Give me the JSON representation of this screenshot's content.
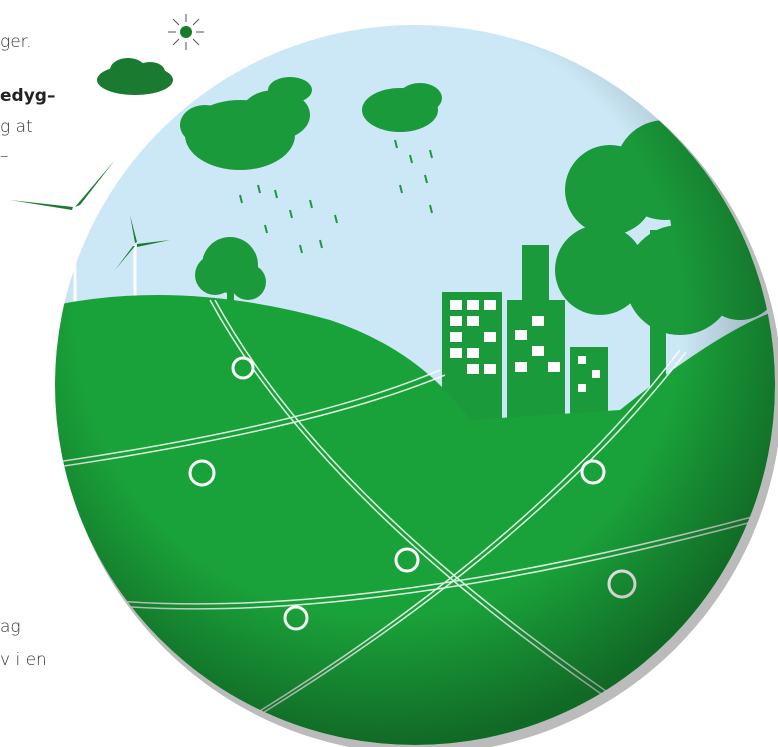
{
  "text_fragments": [
    "ger.",
    "edyg–",
    "g at",
    "–",
    "ag",
    "v i en"
  ]
}
